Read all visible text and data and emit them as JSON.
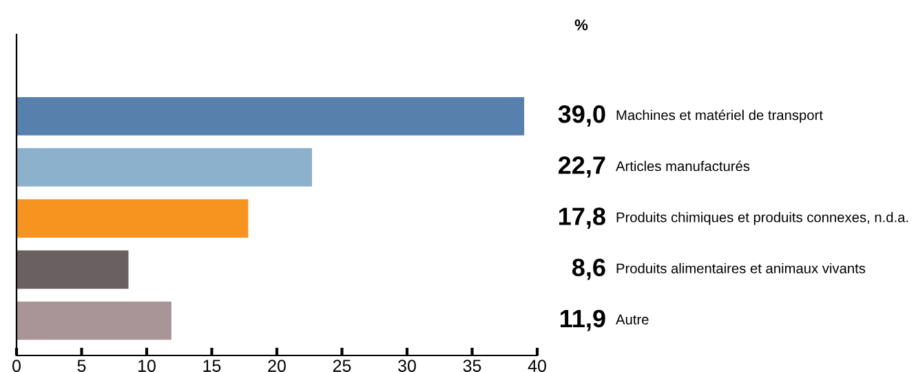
{
  "chart_data": {
    "type": "bar",
    "orientation": "horizontal",
    "categories": [
      "Machines et matériel de transport",
      "Articles manufacturés",
      "Produits chimiques et produits connexes, n.d.a.",
      "Produits alimentaires et animaux vivants",
      "Autre"
    ],
    "values": [
      39.0,
      22.7,
      17.8,
      8.6,
      11.9
    ],
    "value_labels": [
      "39,0",
      "22,7",
      "17,8",
      "8,6",
      "11,9"
    ],
    "colors": [
      "#5780ac",
      "#8bb1cc",
      "#f6941f",
      "#6b6061",
      "#a99598"
    ],
    "xlim": [
      0,
      40
    ],
    "xticks": [
      0,
      5,
      10,
      15,
      20,
      25,
      30,
      35,
      40
    ],
    "annotations": [
      "%"
    ],
    "grid": false,
    "legend": false
  }
}
